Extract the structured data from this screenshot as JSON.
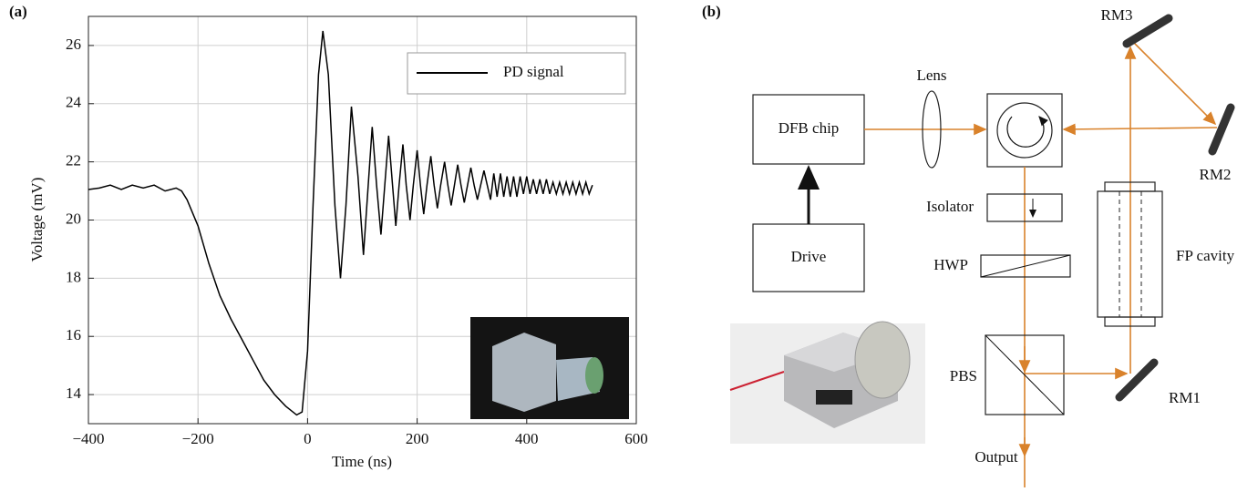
{
  "chart_data": {
    "type": "line",
    "xlabel": "Time (ns)",
    "ylabel": "Voltage (mV)",
    "x": [
      -400,
      -380,
      -360,
      -340,
      -320,
      -300,
      -280,
      -260,
      -240,
      -230,
      -220,
      -200,
      -180,
      -160,
      -140,
      -120,
      -100,
      -80,
      -60,
      -40,
      -20,
      -10,
      0,
      10,
      20,
      28,
      38,
      50,
      60,
      70,
      80,
      92,
      102,
      110,
      118,
      126,
      134,
      141,
      148,
      155,
      161,
      167,
      174,
      180,
      187,
      193,
      200,
      206,
      212,
      218,
      225,
      231,
      237,
      243,
      250,
      256,
      262,
      268,
      274,
      280,
      286,
      292,
      298,
      304,
      310,
      316,
      322,
      328,
      334,
      340,
      346,
      352,
      358,
      364,
      370,
      376,
      382,
      388,
      394,
      400,
      406,
      412,
      418,
      424,
      430,
      436,
      442,
      448,
      454,
      460,
      466,
      472,
      478,
      484,
      490,
      496,
      502,
      508,
      514,
      520
    ],
    "series": [
      {
        "name": "PD signal",
        "color": "#000000",
        "values": [
          21.05,
          21.1,
          21.2,
          21.05,
          21.2,
          21.1,
          21.2,
          21.0,
          21.1,
          21.0,
          20.7,
          19.8,
          18.5,
          17.4,
          16.6,
          15.9,
          15.2,
          14.5,
          14.0,
          13.6,
          13.3,
          13.4,
          15.5,
          20.5,
          25.0,
          26.5,
          25.0,
          20.5,
          18.0,
          20.5,
          23.9,
          21.5,
          18.8,
          21.0,
          23.2,
          21.2,
          19.5,
          21.2,
          22.9,
          21.2,
          19.8,
          21.2,
          22.6,
          21.2,
          20.0,
          21.2,
          22.4,
          21.2,
          20.2,
          21.2,
          22.2,
          21.2,
          20.4,
          21.2,
          22.0,
          21.2,
          20.5,
          21.2,
          21.9,
          21.2,
          20.6,
          21.2,
          21.8,
          21.2,
          20.7,
          21.2,
          21.7,
          21.2,
          20.7,
          21.6,
          20.8,
          21.6,
          20.8,
          21.5,
          20.8,
          21.5,
          20.8,
          21.5,
          20.9,
          21.5,
          20.9,
          21.4,
          20.9,
          21.4,
          20.9,
          21.4,
          20.9,
          21.3,
          20.9,
          21.3,
          20.9,
          21.3,
          20.9,
          21.3,
          20.9,
          21.3,
          20.9,
          21.3,
          20.9,
          21.2
        ]
      }
    ],
    "xlim": [
      -400,
      600
    ],
    "ylim": [
      13,
      27
    ],
    "xticks": [
      {
        "value": -400,
        "label": "−400"
      },
      {
        "value": -200,
        "label": "−200"
      },
      0,
      200,
      400,
      600
    ],
    "yticks": [
      14,
      16,
      18,
      20,
      22,
      24,
      26
    ],
    "grid": true,
    "legend": "upper right"
  },
  "panel_labels": [
    "(a)",
    "(b)"
  ],
  "diagram": {
    "dfb": "DFB chip",
    "drive": "Drive",
    "lens": "Lens",
    "isolator": "Isolator",
    "hwp": "HWP",
    "pbs": "PBS",
    "output": "Output",
    "fp": "FP cavity",
    "rm1": "RM1",
    "rm2": "RM2",
    "rm3": "RM3"
  }
}
